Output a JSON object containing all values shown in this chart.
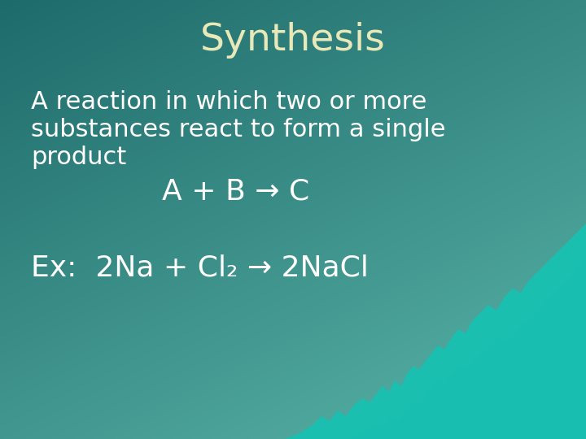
{
  "title": "Synthesis",
  "title_color": "#e8e8b8",
  "title_fontsize": 34,
  "bg_color_top_left": "#1e6b6b",
  "bg_color_bottom_right": "#5ab5a8",
  "text_color": "#ffffff",
  "body_text_line1": "A reaction in which two or more",
  "body_text_line2": "substances react to form a single",
  "body_text_line3": "product",
  "formula_line": "A + B → C",
  "example_line": "Ex:  2Na + Cl₂ → 2NaCl",
  "body_fontsize": 22,
  "formula_fontsize": 26,
  "example_fontsize": 26,
  "wave_color": "#1bbfb0",
  "wave_color2": "#18c0b0"
}
